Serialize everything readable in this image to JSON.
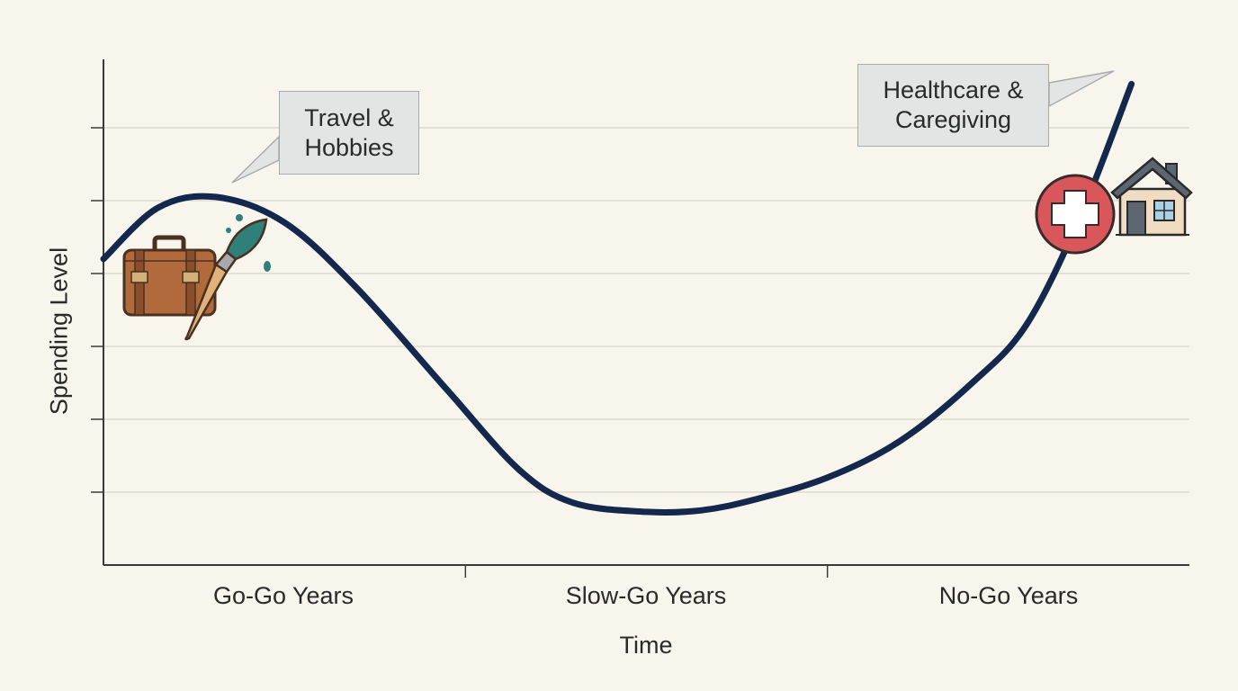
{
  "chart_data": {
    "type": "line",
    "title": "",
    "xlabel": "Time",
    "ylabel": "Spending Level",
    "categories": [
      "Go-Go Years",
      "Slow-Go Years",
      "No-Go Years"
    ],
    "x_range": [
      0,
      3
    ],
    "ylim": [
      0,
      7
    ],
    "grid": true,
    "series": [
      {
        "x": [
          0,
          0.15,
          0.31,
          0.5,
          0.7,
          0.95,
          1.15,
          1.3,
          1.5,
          1.65,
          1.8,
          2.0,
          2.2,
          2.4,
          2.55,
          2.7,
          2.84
        ],
        "values": [
          4.2,
          4.9,
          5.05,
          4.7,
          3.8,
          2.4,
          1.3,
          0.85,
          0.73,
          0.75,
          0.9,
          1.2,
          1.7,
          2.5,
          3.3,
          4.8,
          6.6
        ]
      }
    ],
    "annotations": [
      {
        "lines": [
          "Travel &",
          "Hobbies"
        ],
        "x": 0.35,
        "y": 5.1,
        "icons": [
          "suitcase-icon",
          "paintbrush-icon"
        ]
      },
      {
        "lines": [
          "Healthcare &",
          "Caregiving"
        ],
        "x": 2.82,
        "y": 6.6,
        "icons": [
          "medical-cross-icon",
          "house-icon"
        ]
      }
    ],
    "colors": {
      "line": "#14284d",
      "grid": "#dedbd0",
      "axis": "#3a3a3a",
      "callout_fill": "#e3e5e4",
      "callout_border": "#a9acae",
      "medical": "#d9575a"
    }
  }
}
